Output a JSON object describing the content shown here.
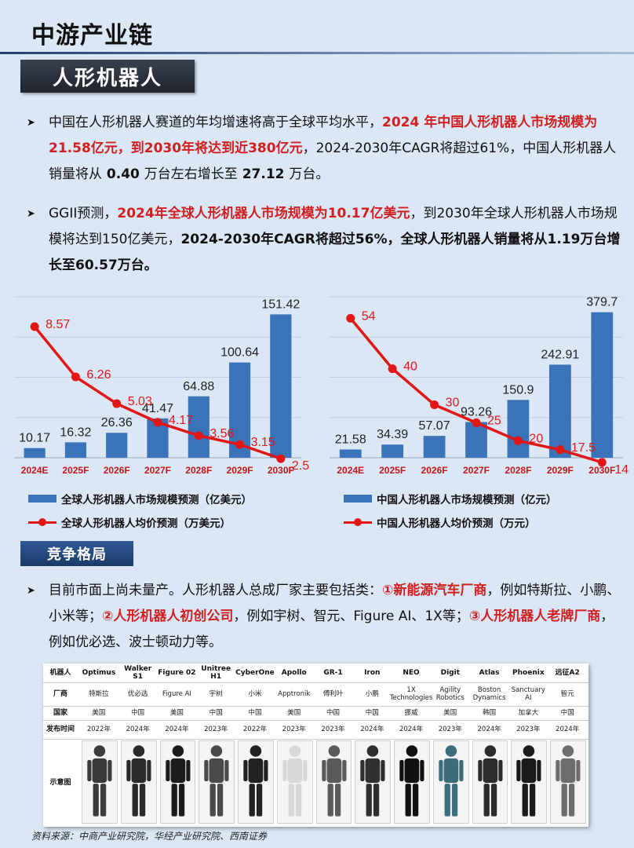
{
  "header": {
    "title": "中游产业链",
    "section": "人形机器人"
  },
  "paragraphs": {
    "p1": {
      "a": "中国在人形机器人赛道的年均增速将高于全球平均水平，",
      "b": "2024 年中国人形机器人市场规模为21.58亿元，到2030年将达到近380亿元",
      "c": "，2024-2030年CAGR将超过61%，中国人形机器人销量将从",
      "d": " 0.40 ",
      "e": "万台左右增长至",
      "f": " 27.12 ",
      "g": "万台。"
    },
    "p2": {
      "a": "GGII预测，",
      "b": "2024年全球人形机器人市场规模为10.17亿美元",
      "c": "，到2030年全球人形机器人市场规模将达到150亿美元，",
      "d": "2024-2030年CAGR将超过56%，全球人形机器人销量将从1.19万台增长至60.57万台。"
    },
    "p3": {
      "a": "目前市面上尚未量产。人形机器人总成厂家主要包括类：",
      "b": "①新能源汽车厂商",
      "c": "，例如特斯拉、小鹏、小米等；",
      "d": "②人形机器人初创公司",
      "e": "，例如宇树、智元、Figure AI、1X等；",
      "f": "③人形机器人老牌厂商",
      "g": "，例如优必选、波士顿动力等。"
    }
  },
  "competition_title": "竞争格局",
  "chart_data": [
    {
      "type": "bar",
      "categories": [
        "2024E",
        "2025F",
        "2026F",
        "2027F",
        "2028F",
        "2029F",
        "2030F"
      ],
      "series": [
        {
          "name": "全球人形机器人市场规模预测（亿美元）",
          "type": "bar",
          "values": [
            10.17,
            16.32,
            26.36,
            41.47,
            64.88,
            100.64,
            151.42
          ]
        },
        {
          "name": "全球人形机器人均价预测（万美元）",
          "type": "line",
          "values": [
            8.57,
            6.26,
            5.03,
            4.17,
            3.56,
            3.15,
            2.5
          ]
        }
      ],
      "bar_ylim": [
        0,
        170
      ],
      "line_ylim": [
        2,
        9.4
      ],
      "grid": true,
      "colors": {
        "bar": "#3a73b8",
        "line": "#e31616"
      },
      "legend_position": "bottom"
    },
    {
      "type": "bar",
      "categories": [
        "2024E",
        "2025F",
        "2026F",
        "2027F",
        "2028F",
        "2029F",
        "2030F"
      ],
      "series": [
        {
          "name": "中国人形机器人市场规模预测（亿元）",
          "type": "bar",
          "values": [
            21.58,
            34.39,
            57.07,
            93.26,
            150.9,
            242.91,
            379.7
          ]
        },
        {
          "name": "中国人形机器人均价预测（万元）",
          "type": "line",
          "values": [
            54,
            40,
            30,
            25,
            20,
            17.5,
            14
          ]
        }
      ],
      "bar_ylim": [
        0,
        420
      ],
      "line_ylim": [
        12,
        56.7
      ],
      "grid": true,
      "colors": {
        "bar": "#3a73b8",
        "line": "#e31616"
      },
      "legend_position": "bottom"
    }
  ],
  "table": {
    "row_labels": [
      "机器人",
      "厂商",
      "国家",
      "发布时间",
      "示意图"
    ],
    "columns": [
      {
        "robot": "Optimus",
        "maker": "特斯拉",
        "country": "美国",
        "year": "2022年"
      },
      {
        "robot": "Walker S1",
        "maker": "优必选",
        "country": "中国",
        "year": "2024年"
      },
      {
        "robot": "Figure 02",
        "maker": "Figure AI",
        "country": "美国",
        "year": "2024年"
      },
      {
        "robot": "Unitree H1",
        "maker": "宇树",
        "country": "中国",
        "year": "2023年"
      },
      {
        "robot": "CyberOne",
        "maker": "小米",
        "country": "中国",
        "year": "2022年"
      },
      {
        "robot": "Apollo",
        "maker": "Apptronik",
        "country": "美国",
        "year": "2023年"
      },
      {
        "robot": "GR-1",
        "maker": "傅利叶",
        "country": "中国",
        "year": "2023年"
      },
      {
        "robot": "Iron",
        "maker": "小鹏",
        "country": "中国",
        "year": "2024年"
      },
      {
        "robot": "NEO",
        "maker": "1X Technologies",
        "country": "挪威",
        "year": "2024年"
      },
      {
        "robot": "Digit",
        "maker": "Agility Robotics",
        "country": "美国",
        "year": "2023年"
      },
      {
        "robot": "Atlas",
        "maker": "Boston Dynamics",
        "country": "韩国",
        "year": "2024年"
      },
      {
        "robot": "Phoenix",
        "maker": "Sanctuary AI",
        "country": "加拿大",
        "year": "2023年"
      },
      {
        "robot": "远征A2",
        "maker": "智元",
        "country": "中国",
        "year": "2024年"
      }
    ]
  },
  "source": "资料来源：中商产业研究院，华经产业研究院、西南证券"
}
